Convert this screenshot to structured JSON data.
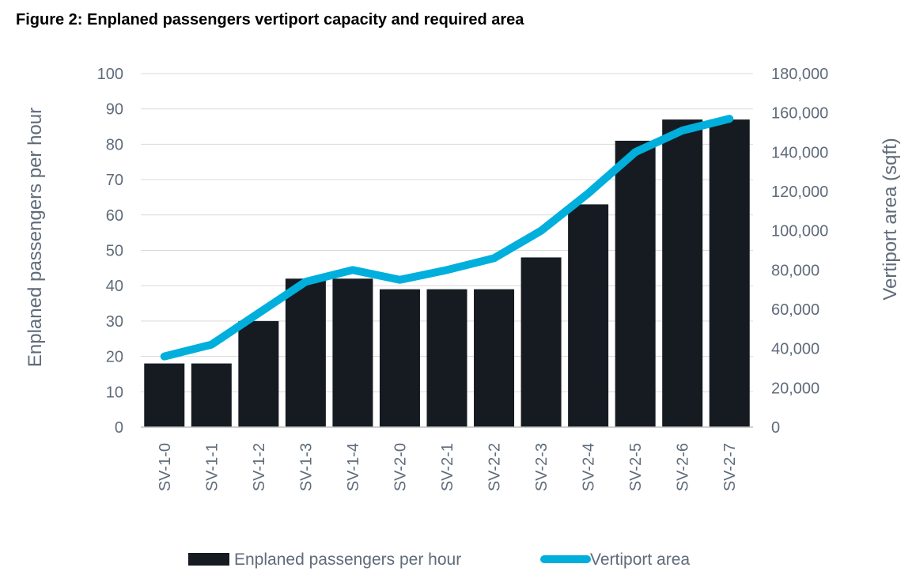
{
  "figure_title": "Figure 2: Enplaned passengers vertiport capacity and required area",
  "chart_data": {
    "type": "bar",
    "title": "Figure 2: Enplaned passengers vertiport capacity and required area",
    "categories": [
      "SV-1-0",
      "SV-1-1",
      "SV-1-2",
      "SV-1-3",
      "SV-1-4",
      "SV-2-0",
      "SV-2-1",
      "SV-2-2",
      "SV-2-3",
      "SV-2-4",
      "SV-2-5",
      "SV-2-6",
      "SV-2-7"
    ],
    "series": [
      {
        "name": "Enplaned passengers per hour",
        "type": "bar",
        "axis": "left",
        "color": "#161b22",
        "values": [
          18,
          18,
          30,
          42,
          42,
          39,
          39,
          39,
          48,
          63,
          81,
          87,
          87
        ]
      },
      {
        "name": "Vertiport area",
        "type": "line",
        "axis": "right",
        "color": "#00afdc",
        "values": [
          36000,
          42000,
          58000,
          74000,
          80000,
          75000,
          80000,
          86000,
          100000,
          119000,
          140000,
          151000,
          157000
        ]
      }
    ],
    "ylabel": "Enplaned passengers per hour",
    "ylim": [
      0,
      100
    ],
    "yticks": [
      0,
      10,
      20,
      30,
      40,
      50,
      60,
      70,
      80,
      90,
      100
    ],
    "ytick_labels": [
      "0",
      "10",
      "20",
      "30",
      "40",
      "50",
      "60",
      "70",
      "80",
      "90",
      "100"
    ],
    "y2label": "Vertiport area (sqft)",
    "y2lim": [
      0,
      180000
    ],
    "y2ticks": [
      0,
      20000,
      40000,
      60000,
      80000,
      100000,
      120000,
      140000,
      160000,
      180000
    ],
    "y2tick_labels": [
      "0",
      "20,000",
      "40,000",
      "60,000",
      "80,000",
      "100,000",
      "120,000",
      "140,000",
      "160,000",
      "180,000"
    ],
    "grid": true,
    "legend": "bottom"
  }
}
